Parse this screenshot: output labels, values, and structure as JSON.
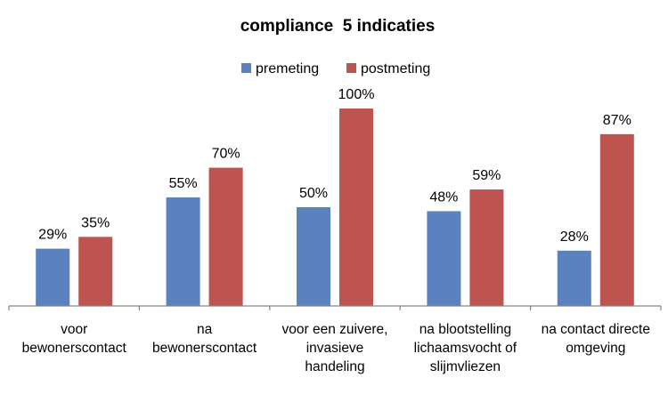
{
  "chart_data": {
    "type": "bar",
    "title": "compliance  5 indicaties",
    "xlabel": "",
    "ylabel": "",
    "ylim": [
      0,
      100
    ],
    "grid": false,
    "legend_position": "top",
    "value_suffix": "%",
    "categories": [
      [
        "voor",
        "bewonerscontact"
      ],
      [
        "na",
        "bewonerscontact"
      ],
      [
        "voor een zuivere,",
        "invasieve",
        "handeling"
      ],
      [
        "na blootstelling",
        "lichaamsvocht of",
        "slijmvliezen"
      ],
      [
        "na contact directe",
        "omgeving"
      ]
    ],
    "series": [
      {
        "name": "premeting",
        "color": "#5b81be",
        "values": [
          29,
          55,
          50,
          48,
          28
        ]
      },
      {
        "name": "postmeting",
        "color": "#bd5450",
        "values": [
          35,
          70,
          100,
          59,
          87
        ]
      }
    ]
  }
}
